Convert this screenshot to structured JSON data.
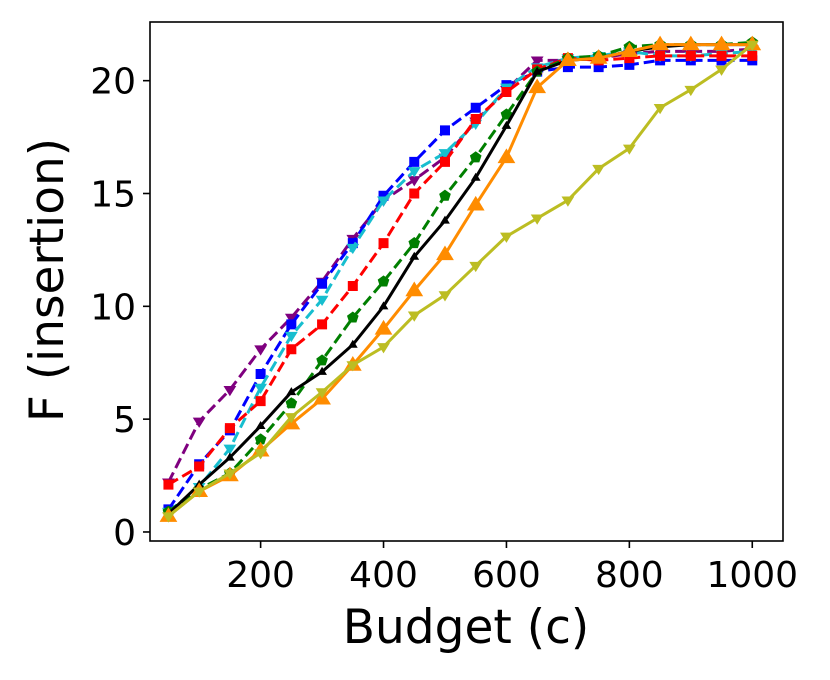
{
  "chart_data": {
    "type": "line",
    "title": "",
    "xlabel": "Budget (c)",
    "ylabel": "F (insertion)",
    "xlim": [
      20,
      1050
    ],
    "ylim": [
      -0.4,
      22.6
    ],
    "x_ticks": [
      200,
      400,
      600,
      800,
      1000
    ],
    "y_ticks": [
      0,
      5,
      10,
      15,
      20
    ],
    "grid": false,
    "legend": "none",
    "x": [
      50,
      100,
      150,
      200,
      250,
      300,
      350,
      400,
      450,
      500,
      550,
      600,
      650,
      700,
      750,
      800,
      850,
      900,
      950,
      1000
    ],
    "series": [
      {
        "color": "#7f007f",
        "line": "dashed",
        "marker": "triangle-down",
        "values": [
          2.2,
          4.9,
          6.3,
          8.1,
          9.5,
          11.1,
          13.0,
          14.7,
          15.6,
          16.6,
          18.2,
          19.6,
          20.9,
          20.9,
          21.0,
          21.2,
          21.3,
          21.3,
          21.3,
          21.4
        ]
      },
      {
        "color": "#0000ff",
        "line": "dashed",
        "marker": "square",
        "values": [
          1.0,
          3.0,
          4.5,
          7.0,
          9.2,
          11.0,
          12.8,
          14.9,
          16.4,
          17.8,
          18.8,
          19.8,
          20.4,
          20.6,
          20.6,
          20.7,
          20.9,
          20.9,
          20.9,
          20.9
        ]
      },
      {
        "color": "#17becf",
        "line": "dashed",
        "marker": "triangle-down",
        "values": [
          0.9,
          2.0,
          3.7,
          6.4,
          8.7,
          10.3,
          12.6,
          14.7,
          16.0,
          16.8,
          18.1,
          19.7,
          20.6,
          21.0,
          21.1,
          21.3,
          21.1,
          21.1,
          21.2,
          21.3
        ]
      },
      {
        "color": "#ff0000",
        "line": "dashed",
        "marker": "square",
        "values": [
          2.1,
          2.9,
          4.6,
          5.8,
          8.1,
          9.2,
          10.9,
          12.8,
          15.0,
          16.4,
          18.3,
          19.5,
          20.5,
          21.0,
          20.9,
          21.0,
          21.1,
          21.1,
          21.1,
          21.1
        ]
      },
      {
        "color": "#007f00",
        "line": "dashed",
        "marker": "pentagon",
        "values": [
          0.9,
          1.9,
          2.6,
          4.1,
          5.7,
          7.6,
          9.5,
          11.1,
          12.8,
          14.9,
          16.6,
          18.5,
          20.4,
          21.0,
          21.1,
          21.5,
          21.6,
          21.6,
          21.6,
          21.7
        ]
      },
      {
        "color": "#000000",
        "line": "solid",
        "marker": "triangle-up-small",
        "values": [
          0.8,
          2.1,
          3.3,
          4.7,
          6.2,
          7.1,
          8.3,
          10.0,
          12.2,
          13.8,
          15.7,
          18.0,
          20.4,
          20.9,
          21.0,
          21.3,
          21.5,
          21.6,
          21.6,
          21.6
        ]
      },
      {
        "color": "#ff8c00",
        "line": "solid",
        "marker": "triangle-up",
        "values": [
          0.7,
          1.8,
          2.5,
          3.6,
          4.8,
          5.9,
          7.4,
          9.0,
          10.7,
          12.3,
          14.5,
          16.6,
          19.7,
          20.9,
          21.0,
          21.3,
          21.6,
          21.6,
          21.6,
          21.6
        ]
      },
      {
        "color": "#bcbd22",
        "line": "solid",
        "marker": "triangle-down",
        "values": [
          0.7,
          1.8,
          2.6,
          3.5,
          5.1,
          6.2,
          7.4,
          8.2,
          9.6,
          10.5,
          11.8,
          13.1,
          13.9,
          14.7,
          16.1,
          17.0,
          18.8,
          19.6,
          20.5,
          21.6
        ]
      }
    ]
  }
}
